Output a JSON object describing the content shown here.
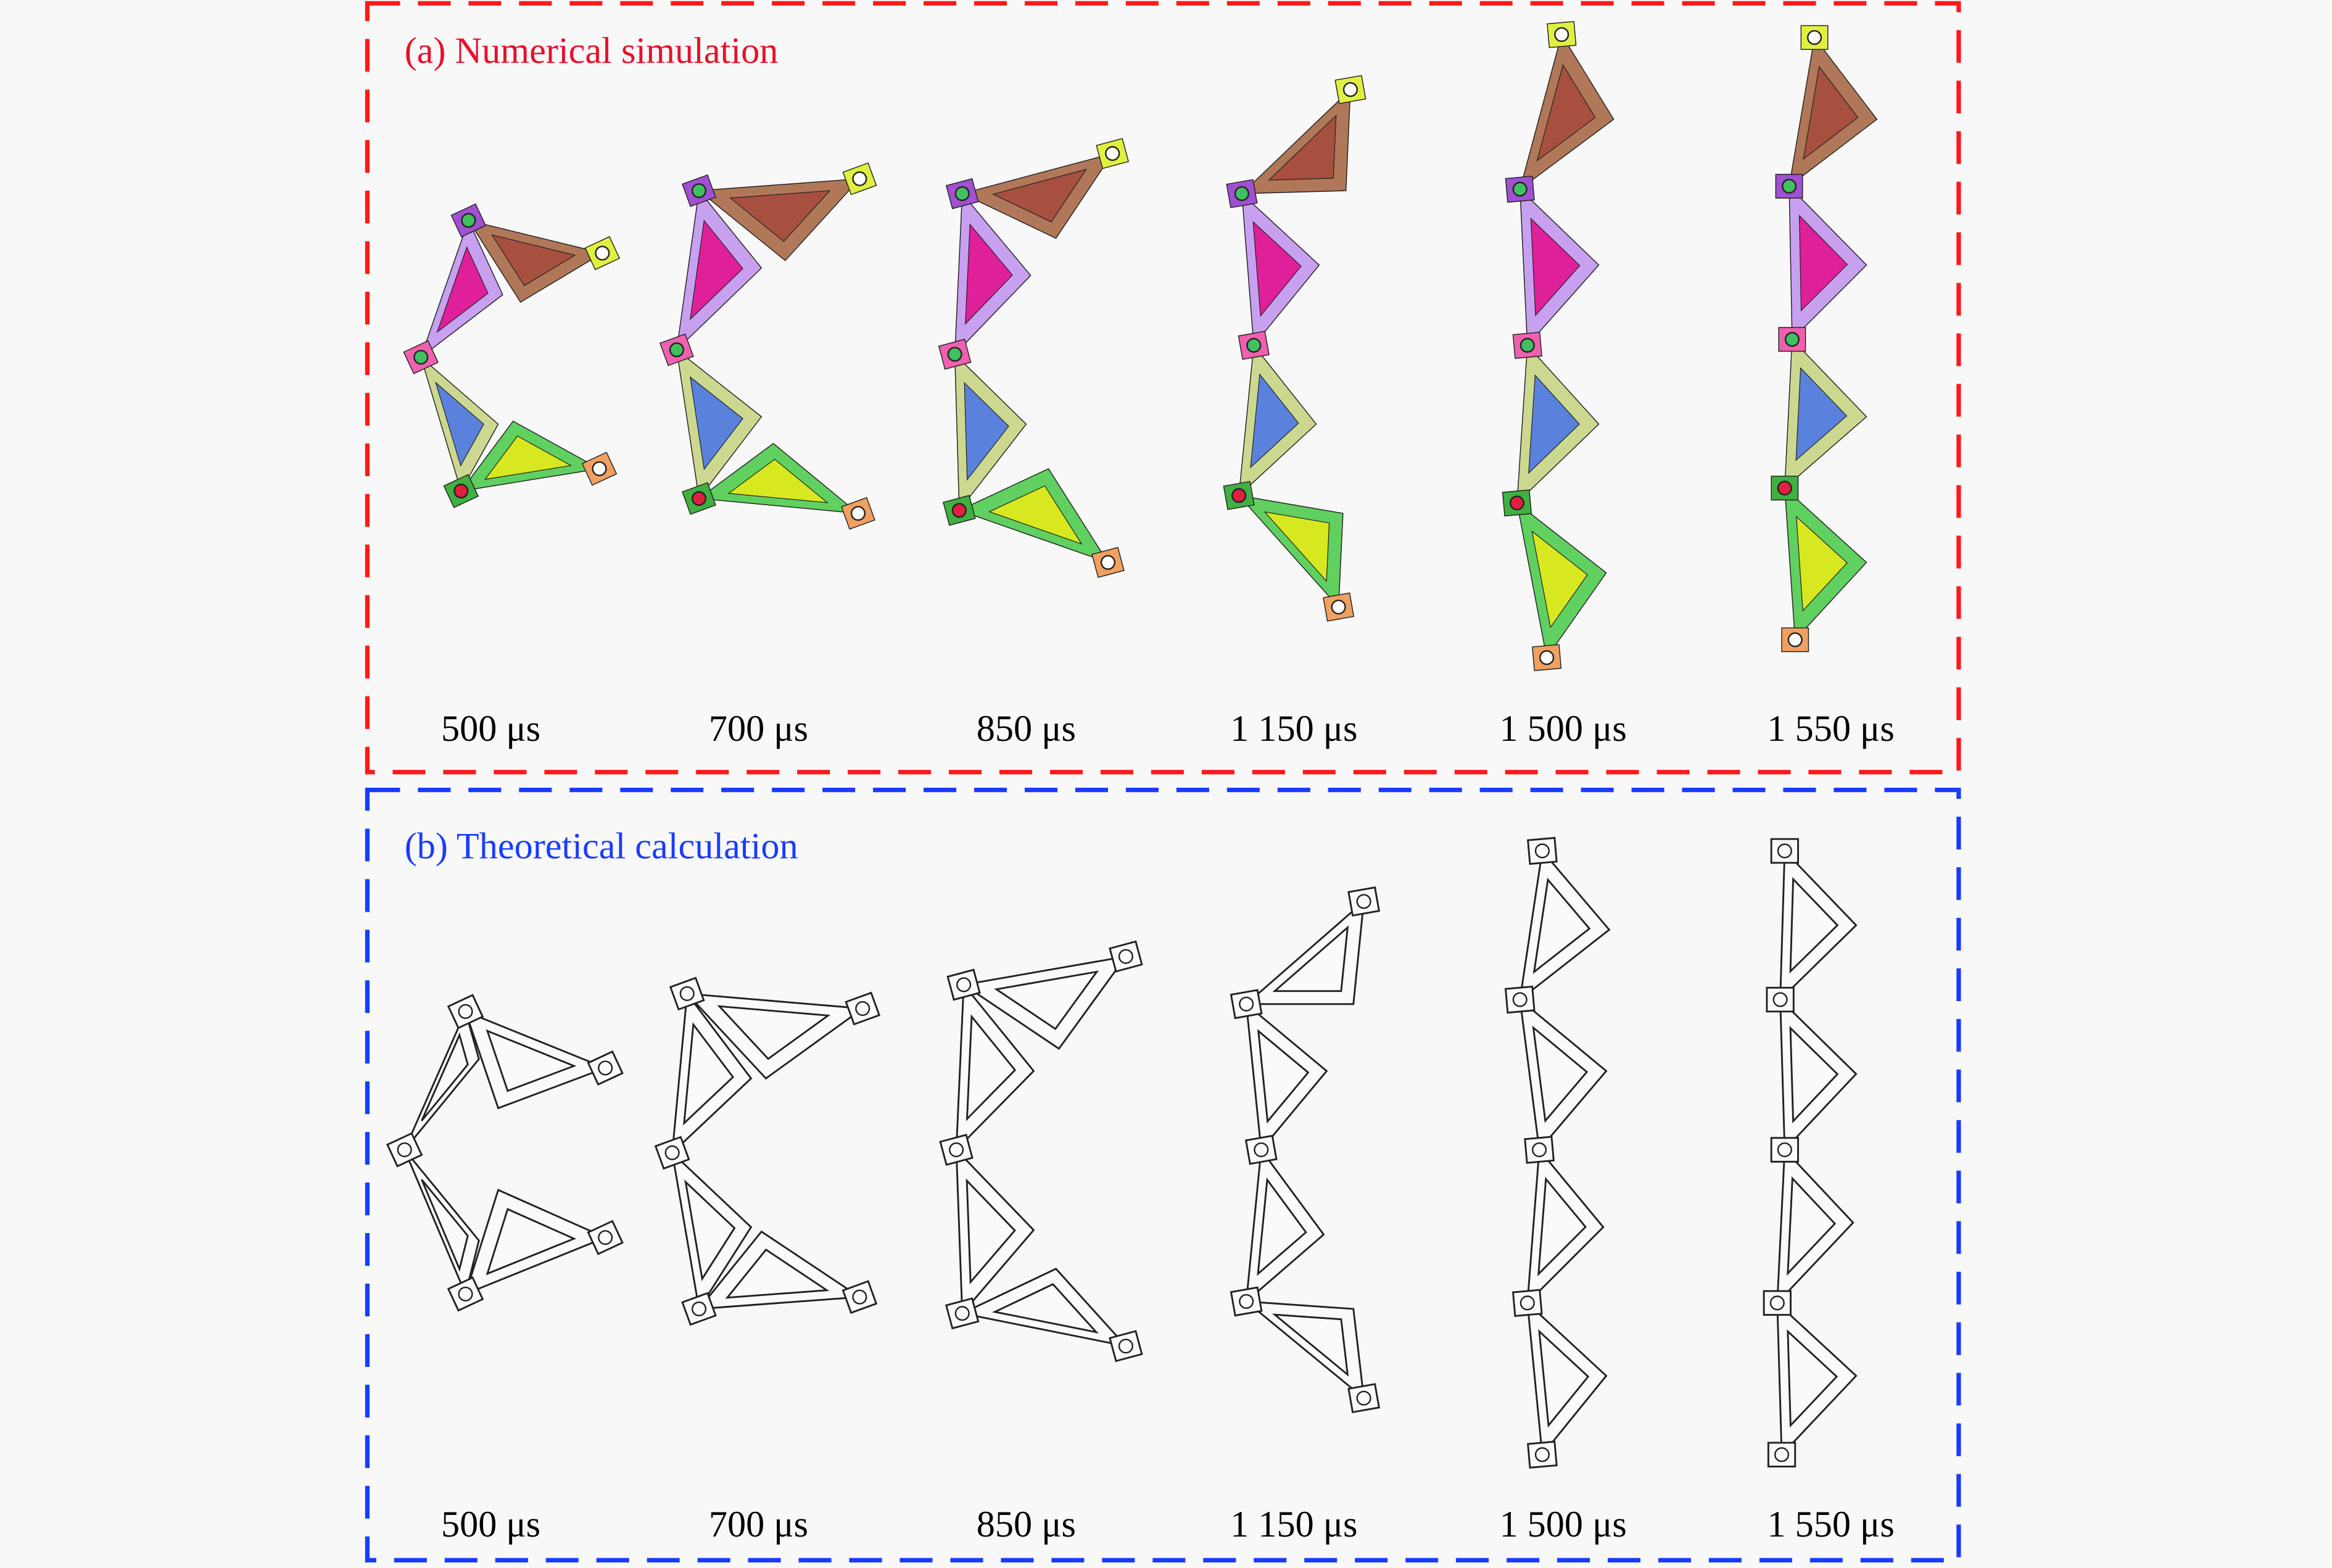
{
  "panel_a": {
    "title": "(a) Numerical simulation",
    "frame_color": "#ff1a1a",
    "times": [
      "500 μs",
      "700 μs",
      "850 μs",
      "1 150 μs",
      "1 500 μs",
      "1 550 μs"
    ]
  },
  "panel_b": {
    "title": "(b) Theoretical calculation",
    "frame_color": "#1a3cff",
    "times": [
      "500 μs",
      "700 μs",
      "850 μs",
      "1 150 μs",
      "1 500 μs",
      "1 550 μs"
    ]
  },
  "colors": {
    "unit_1": {
      "frame": "#b07858",
      "fill": "#a85040"
    },
    "unit_2": {
      "frame": "#c8a0f0",
      "fill": "#e0209a"
    },
    "unit_3": {
      "frame": "#ccd890",
      "fill": "#5a82dc"
    },
    "unit_4": {
      "frame": "#60d060",
      "fill": "#d8e820"
    },
    "end_top": "#e0f040",
    "end_bottom": "#f0a060",
    "hinges": [
      "#a050d0",
      "#f060b0",
      "#40b040"
    ]
  }
}
